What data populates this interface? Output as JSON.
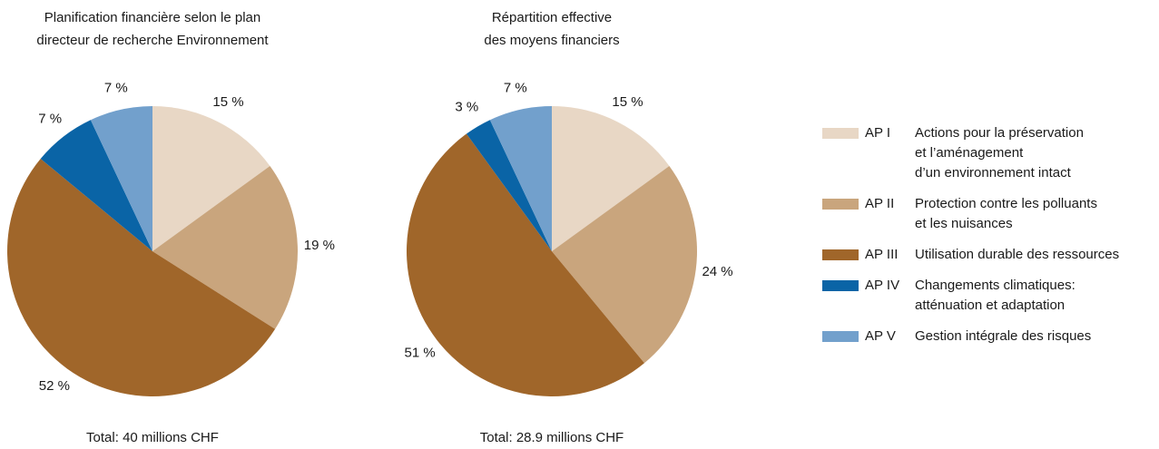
{
  "chart_data": [
    {
      "type": "pie",
      "title": [
        "Planification financière selon le plan",
        "directeur de recherche Environnement"
      ],
      "values": [
        15,
        19,
        52,
        7,
        7
      ],
      "value_labels": [
        "15 %",
        "19 %",
        "52 %",
        "7 %",
        "7 %"
      ],
      "total": "Total: 40 millions CHF"
    },
    {
      "type": "pie",
      "title": [
        "Répartition effective",
        "des moyens financiers"
      ],
      "values": [
        15,
        24,
        51,
        3,
        7
      ],
      "value_labels": [
        "15 %",
        "24 %",
        "51 %",
        "3 %",
        "7 %"
      ],
      "total": "Total: 28.9 millions CHF"
    }
  ],
  "legend": [
    {
      "code": "AP I",
      "label": [
        "Actions pour la préservation",
        "et l’aménagement",
        "d’un environnement intact"
      ],
      "color": "#e8d7c5"
    },
    {
      "code": "AP II",
      "label": [
        "Protection contre les polluants",
        "et les nuisances"
      ],
      "color": "#c9a57d"
    },
    {
      "code": "AP III",
      "label": [
        "Utilisation durable des ressources"
      ],
      "color": "#a0662a"
    },
    {
      "code": "AP IV",
      "label": [
        "Changements climatiques:",
        "atténuation et adaptation"
      ],
      "color": "#0a64a6"
    },
    {
      "code": "AP V",
      "label": [
        "Gestion intégrale des risques"
      ],
      "color": "#72a0cc"
    }
  ]
}
